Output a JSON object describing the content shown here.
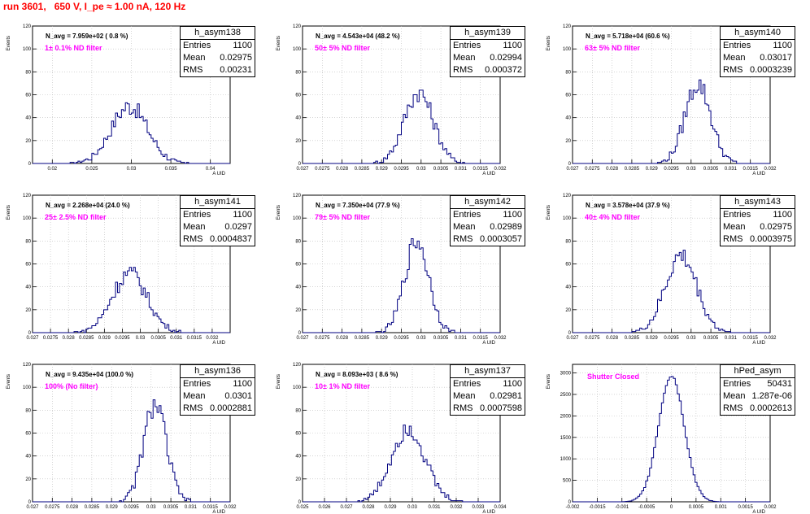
{
  "title": "run 3601,   650 V, I_pe ≈ 1.00 nA, 120 Hz",
  "colors": {
    "title": "#ff0000",
    "filter_label": "#ff00ff",
    "histogram": "#000080",
    "grid": "#bbbbbb"
  },
  "chart_data": [
    {
      "type": "histogram",
      "name": "h_asym138",
      "n_avg": "N_avg = 7.959e+02 ( 0.8 %)",
      "filter": "1± 0.1% ND filter",
      "stats": [
        [
          "Entries",
          "1100"
        ],
        [
          "Mean",
          "0.02975"
        ],
        [
          "RMS",
          "0.00231"
        ]
      ],
      "ylabel": "Events",
      "xlabel": "A_UID",
      "ylim": [
        0,
        120
      ],
      "yticks": [
        0,
        20,
        40,
        60,
        80,
        100,
        120
      ],
      "xlim": [
        0.0175,
        0.0425
      ],
      "xticks": [
        0.02,
        0.025,
        0.03,
        0.035,
        0.04
      ],
      "xtick_labels": [
        "0.02",
        "0.025",
        "0.03",
        "0.035",
        "0.04"
      ],
      "mean": 0.02975,
      "rms": 0.00231,
      "entries": 1100,
      "nbins": 100,
      "peak": 50,
      "grid": true
    },
    {
      "type": "histogram",
      "name": "h_asym139",
      "n_avg": "N_avg = 4.543e+04 (48.2 %)",
      "filter": "50± 5% ND filter",
      "stats": [
        [
          "Entries",
          "1100"
        ],
        [
          "Mean",
          "0.02994"
        ],
        [
          "RMS",
          "0.000372"
        ]
      ],
      "ylabel": "Events",
      "xlabel": "A_UID",
      "ylim": [
        0,
        120
      ],
      "yticks": [
        0,
        20,
        40,
        60,
        80,
        100,
        120
      ],
      "xlim": [
        0.027,
        0.032
      ],
      "xticks": [
        0.027,
        0.0275,
        0.028,
        0.0285,
        0.029,
        0.0295,
        0.03,
        0.0305,
        0.031,
        0.0315,
        0.032
      ],
      "xtick_labels": [
        "0.027",
        "0.0275",
        "0.028",
        "0.0285",
        "0.029",
        "0.0295",
        "0.03",
        "0.0305",
        "0.031",
        "0.0315",
        "0.032"
      ],
      "mean": 0.02994,
      "rms": 0.000372,
      "entries": 1100,
      "nbins": 100,
      "peak": 62,
      "grid": true
    },
    {
      "type": "histogram",
      "name": "h_asym140",
      "n_avg": "N_avg = 5.718e+04 (60.6 %)",
      "filter": "63± 5% ND filter",
      "stats": [
        [
          "Entries",
          "1100"
        ],
        [
          "Mean",
          "0.03017"
        ],
        [
          "RMS",
          "0.0003239"
        ]
      ],
      "ylabel": "Events",
      "xlabel": "A_UID",
      "ylim": [
        0,
        120
      ],
      "yticks": [
        0,
        20,
        40,
        60,
        80,
        100,
        120
      ],
      "xlim": [
        0.027,
        0.032
      ],
      "xticks": [
        0.027,
        0.0275,
        0.028,
        0.0285,
        0.029,
        0.0295,
        0.03,
        0.0305,
        0.031,
        0.0315,
        0.032
      ],
      "xtick_labels": [
        "0.027",
        "0.0275",
        "0.028",
        "0.0285",
        "0.029",
        "0.0295",
        "0.03",
        "0.0305",
        "0.031",
        "0.0315",
        "0.032"
      ],
      "mean": 0.03017,
      "rms": 0.0003239,
      "entries": 1100,
      "nbins": 100,
      "peak": 70,
      "grid": true
    },
    {
      "type": "histogram",
      "name": "h_asym141",
      "n_avg": "N_avg = 2.268e+04 (24.0 %)",
      "filter": "25± 2.5% ND filter",
      "stats": [
        [
          "Entries",
          "1100"
        ],
        [
          "Mean",
          "0.0297"
        ],
        [
          "RMS",
          "0.0004837"
        ]
      ],
      "ylabel": "Events",
      "xlabel": "A_UID",
      "ylim": [
        0,
        120
      ],
      "yticks": [
        0,
        20,
        40,
        60,
        80,
        100,
        120
      ],
      "xlim": [
        0.027,
        0.0325
      ],
      "xticks": [
        0.027,
        0.0275,
        0.028,
        0.0285,
        0.029,
        0.0295,
        0.03,
        0.0305,
        0.031,
        0.0315,
        0.032
      ],
      "xtick_labels": [
        "0.027",
        "0.0275",
        "0.028",
        "0.0285",
        "0.029",
        "0.0295",
        "0.03",
        "0.0305",
        "0.031",
        "0.0315",
        "0.032"
      ],
      "mean": 0.0297,
      "rms": 0.0004837,
      "entries": 1100,
      "nbins": 100,
      "peak": 52,
      "grid": true
    },
    {
      "type": "histogram",
      "name": "h_asym142",
      "n_avg": "N_avg = 7.350e+04 (77.9 %)",
      "filter": "79± 5% ND filter",
      "stats": [
        [
          "Entries",
          "1100"
        ],
        [
          "Mean",
          "0.02989"
        ],
        [
          "RMS",
          "0.0003057"
        ]
      ],
      "ylabel": "Events",
      "xlabel": "A_UID",
      "ylim": [
        0,
        120
      ],
      "yticks": [
        0,
        20,
        40,
        60,
        80,
        100,
        120
      ],
      "xlim": [
        0.027,
        0.032
      ],
      "xticks": [
        0.027,
        0.0275,
        0.028,
        0.0285,
        0.029,
        0.0295,
        0.03,
        0.0305,
        0.031,
        0.0315,
        0.032
      ],
      "xtick_labels": [
        "0.027",
        "0.0275",
        "0.028",
        "0.0285",
        "0.029",
        "0.0295",
        "0.03",
        "0.0305",
        "0.031",
        "0.0315",
        "0.032"
      ],
      "mean": 0.02989,
      "rms": 0.0003057,
      "entries": 1100,
      "nbins": 100,
      "peak": 80,
      "grid": true
    },
    {
      "type": "histogram",
      "name": "h_asym143",
      "n_avg": "N_avg = 3.578e+04 (37.9 %)",
      "filter": "40± 4% ND filter",
      "stats": [
        [
          "Entries",
          "1100"
        ],
        [
          "Mean",
          "0.02975"
        ],
        [
          "RMS",
          "0.0003975"
        ]
      ],
      "ylabel": "Events",
      "xlabel": "A_UID",
      "ylim": [
        0,
        120
      ],
      "yticks": [
        0,
        20,
        40,
        60,
        80,
        100,
        120
      ],
      "xlim": [
        0.027,
        0.032
      ],
      "xticks": [
        0.027,
        0.0275,
        0.028,
        0.0285,
        0.029,
        0.0295,
        0.03,
        0.0305,
        0.031,
        0.0315,
        0.032
      ],
      "xtick_labels": [
        "0.027",
        "0.0275",
        "0.028",
        "0.0285",
        "0.029",
        "0.0295",
        "0.03",
        "0.0305",
        "0.031",
        "0.0315",
        "0.032"
      ],
      "mean": 0.02975,
      "rms": 0.0003975,
      "entries": 1100,
      "nbins": 100,
      "peak": 67,
      "grid": true
    },
    {
      "type": "histogram",
      "name": "h_asym136",
      "n_avg": "N_avg = 9.435e+04 (100.0 %)",
      "filter": "100% (No filter)",
      "stats": [
        [
          "Entries",
          "1100"
        ],
        [
          "Mean",
          "0.0301"
        ],
        [
          "RMS",
          "0.0002881"
        ]
      ],
      "ylabel": "Events",
      "xlabel": "A_UID",
      "ylim": [
        0,
        120
      ],
      "yticks": [
        0,
        20,
        40,
        60,
        80,
        100,
        120
      ],
      "xlim": [
        0.027,
        0.032
      ],
      "xticks": [
        0.027,
        0.0275,
        0.028,
        0.0285,
        0.029,
        0.0295,
        0.03,
        0.0305,
        0.031,
        0.0315,
        0.032
      ],
      "xtick_labels": [
        "0.027",
        "0.0275",
        "0.028",
        "0.0285",
        "0.029",
        "0.0295",
        "0.03",
        "0.0305",
        "0.031",
        "0.0315",
        "0.032"
      ],
      "mean": 0.0301,
      "rms": 0.0002881,
      "entries": 1100,
      "nbins": 100,
      "peak": 85,
      "grid": true
    },
    {
      "type": "histogram",
      "name": "h_asym137",
      "n_avg": "N_avg = 8.093e+03 ( 8.6 %)",
      "filter": "10± 1% ND filter",
      "stats": [
        [
          "Entries",
          "1100"
        ],
        [
          "Mean",
          "0.02981"
        ],
        [
          "RMS",
          "0.0007598"
        ]
      ],
      "ylabel": "Events",
      "xlabel": "A_UID",
      "ylim": [
        0,
        120
      ],
      "yticks": [
        0,
        20,
        40,
        60,
        80,
        100,
        120
      ],
      "xlim": [
        0.025,
        0.034
      ],
      "xticks": [
        0.025,
        0.026,
        0.027,
        0.028,
        0.029,
        0.03,
        0.031,
        0.032,
        0.033,
        0.034
      ],
      "xtick_labels": [
        "0.025",
        "0.026",
        "0.027",
        "0.028",
        "0.029",
        "0.03",
        "0.031",
        "0.032",
        "0.033",
        "0.034"
      ],
      "mean": 0.02981,
      "rms": 0.0007598,
      "entries": 1100,
      "nbins": 100,
      "peak": 65,
      "grid": true
    },
    {
      "type": "histogram",
      "name": "hPed_asym",
      "n_avg": "",
      "filter": "Shutter Closed",
      "stats": [
        [
          "Entries",
          "50431"
        ],
        [
          "Mean",
          "1.287e-06"
        ],
        [
          "RMS",
          "0.0002613"
        ]
      ],
      "ylabel": "Events",
      "xlabel": "A_UID",
      "ylim": [
        0,
        3200
      ],
      "yticks": [
        0,
        500,
        1000,
        1500,
        2000,
        2500,
        3000
      ],
      "xlim": [
        -0.002,
        0.002
      ],
      "xticks": [
        -0.002,
        -0.0015,
        -0.001,
        -0.0005,
        0,
        0.0005,
        0.001,
        0.0015,
        0.002
      ],
      "xtick_labels": [
        "-0.002",
        "-0.0015",
        "-0.001",
        "-0.0005",
        "0",
        "0.0005",
        "0.001",
        "0.0015",
        "0.002"
      ],
      "mean": 0.0,
      "rms": 0.0002613,
      "entries": 50431,
      "nbins": 100,
      "peak": 2950,
      "grid": true
    }
  ]
}
